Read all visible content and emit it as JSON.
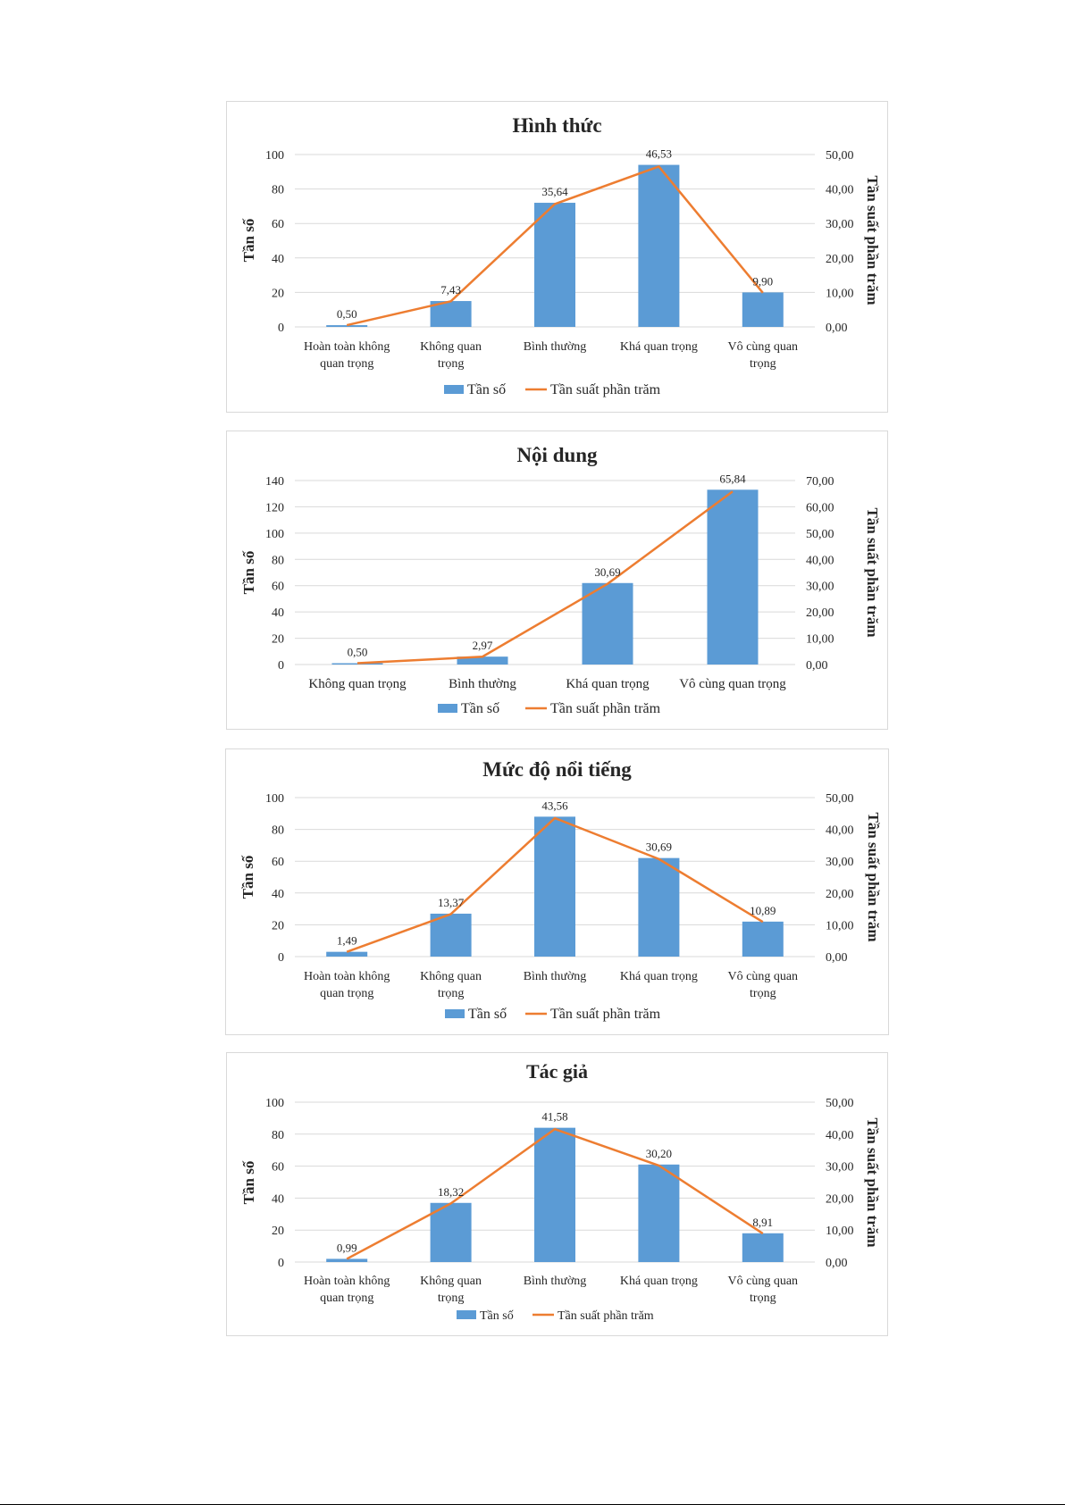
{
  "legend": {
    "bar_label": "Tần số",
    "line_label": "Tần suất phần trăm"
  },
  "colors": {
    "bar": "#5b9bd5",
    "line": "#ed7d31",
    "grid": "#d9d9d9",
    "text": "#262626"
  },
  "chart_data": [
    {
      "type": "bar",
      "title": "Hình thức",
      "categories": [
        [
          "Hoàn toàn không",
          "quan trọng"
        ],
        [
          "Không quan",
          "trọng"
        ],
        [
          "Bình thường"
        ],
        [
          "Khá quan trọng"
        ],
        [
          "Vô cùng quan",
          "trọng"
        ]
      ],
      "ylabel": "Tần số",
      "y2label": "Tần suất phần trăm",
      "ylim": [
        0,
        100
      ],
      "yticks": [
        "0",
        "20",
        "40",
        "60",
        "80",
        "100"
      ],
      "y2lim": [
        0,
        50
      ],
      "y2ticks": [
        "0,00",
        "10,00",
        "20,00",
        "30,00",
        "40,00",
        "50,00"
      ],
      "legend_position": "bottom",
      "grid": true,
      "series": [
        {
          "name": "Tần số",
          "kind": "bar",
          "values": [
            1,
            15,
            72,
            94,
            20
          ]
        },
        {
          "name": "Tần suất phần trăm",
          "kind": "line",
          "values": [
            0.5,
            7.43,
            35.64,
            46.53,
            9.9
          ],
          "labels": [
            "0,50",
            "7,43",
            "35,64",
            "46,53",
            "9,90"
          ]
        }
      ]
    },
    {
      "type": "bar",
      "title": "Nội dung",
      "categories": [
        [
          "Không quan trọng"
        ],
        [
          "Bình thường"
        ],
        [
          "Khá quan trọng"
        ],
        [
          "Vô cùng quan trọng"
        ]
      ],
      "ylabel": "Tần số",
      "y2label": "Tần suất phần trăm",
      "ylim": [
        0,
        140
      ],
      "yticks": [
        "0",
        "20",
        "40",
        "60",
        "80",
        "100",
        "120",
        "140"
      ],
      "y2lim": [
        0,
        70
      ],
      "y2ticks": [
        "0,00",
        "10,00",
        "20,00",
        "30,00",
        "40,00",
        "50,00",
        "60,00",
        "70,00"
      ],
      "legend_position": "bottom",
      "grid": true,
      "series": [
        {
          "name": "Tần số",
          "kind": "bar",
          "values": [
            1,
            6,
            62,
            133
          ]
        },
        {
          "name": "Tần suất phần trăm",
          "kind": "line",
          "values": [
            0.5,
            2.97,
            30.69,
            65.84
          ],
          "labels": [
            "0,50",
            "2,97",
            "30,69",
            "65,84"
          ]
        }
      ]
    },
    {
      "type": "bar",
      "title": "Mức độ nổi tiếng",
      "categories": [
        [
          "Hoàn toàn không",
          "quan trọng"
        ],
        [
          "Không quan",
          "trọng"
        ],
        [
          "Bình thường"
        ],
        [
          "Khá quan trọng"
        ],
        [
          "Vô cùng quan",
          "trọng"
        ]
      ],
      "ylabel": "Tần số",
      "y2label": "Tần suất phần trăm",
      "ylim": [
        0,
        100
      ],
      "yticks": [
        "0",
        "20",
        "40",
        "60",
        "80",
        "100"
      ],
      "y2lim": [
        0,
        50
      ],
      "y2ticks": [
        "0,00",
        "10,00",
        "20,00",
        "30,00",
        "40,00",
        "50,00"
      ],
      "legend_position": "bottom",
      "grid": true,
      "series": [
        {
          "name": "Tần số",
          "kind": "bar",
          "values": [
            3,
            27,
            88,
            62,
            22
          ]
        },
        {
          "name": "Tần suất phần trăm",
          "kind": "line",
          "values": [
            1.49,
            13.37,
            43.56,
            30.69,
            10.89
          ],
          "labels": [
            "1,49",
            "13,37",
            "43,56",
            "30,69",
            "10,89"
          ]
        }
      ]
    },
    {
      "type": "bar",
      "title": "Tác giả",
      "categories": [
        [
          "Hoàn toàn không",
          "quan trọng"
        ],
        [
          "Không quan",
          "trọng"
        ],
        [
          "Bình thường"
        ],
        [
          "Khá quan trọng"
        ],
        [
          "Vô cùng quan",
          "trọng"
        ]
      ],
      "ylabel": "Tần số",
      "y2label": "Tần suất phần trăm",
      "ylim": [
        0,
        100
      ],
      "yticks": [
        "0",
        "20",
        "40",
        "60",
        "80",
        "100"
      ],
      "y2lim": [
        0,
        50
      ],
      "y2ticks": [
        "0,00",
        "10,00",
        "20,00",
        "30,00",
        "40,00",
        "50,00"
      ],
      "legend_position": "bottom",
      "grid": true,
      "series": [
        {
          "name": "Tần số",
          "kind": "bar",
          "values": [
            2,
            37,
            84,
            61,
            18
          ]
        },
        {
          "name": "Tần suất phần trăm",
          "kind": "line",
          "values": [
            0.99,
            18.32,
            41.58,
            30.2,
            8.91
          ],
          "labels": [
            "0,99",
            "18,32",
            "41,58",
            "30,20",
            "8,91"
          ]
        }
      ]
    }
  ]
}
